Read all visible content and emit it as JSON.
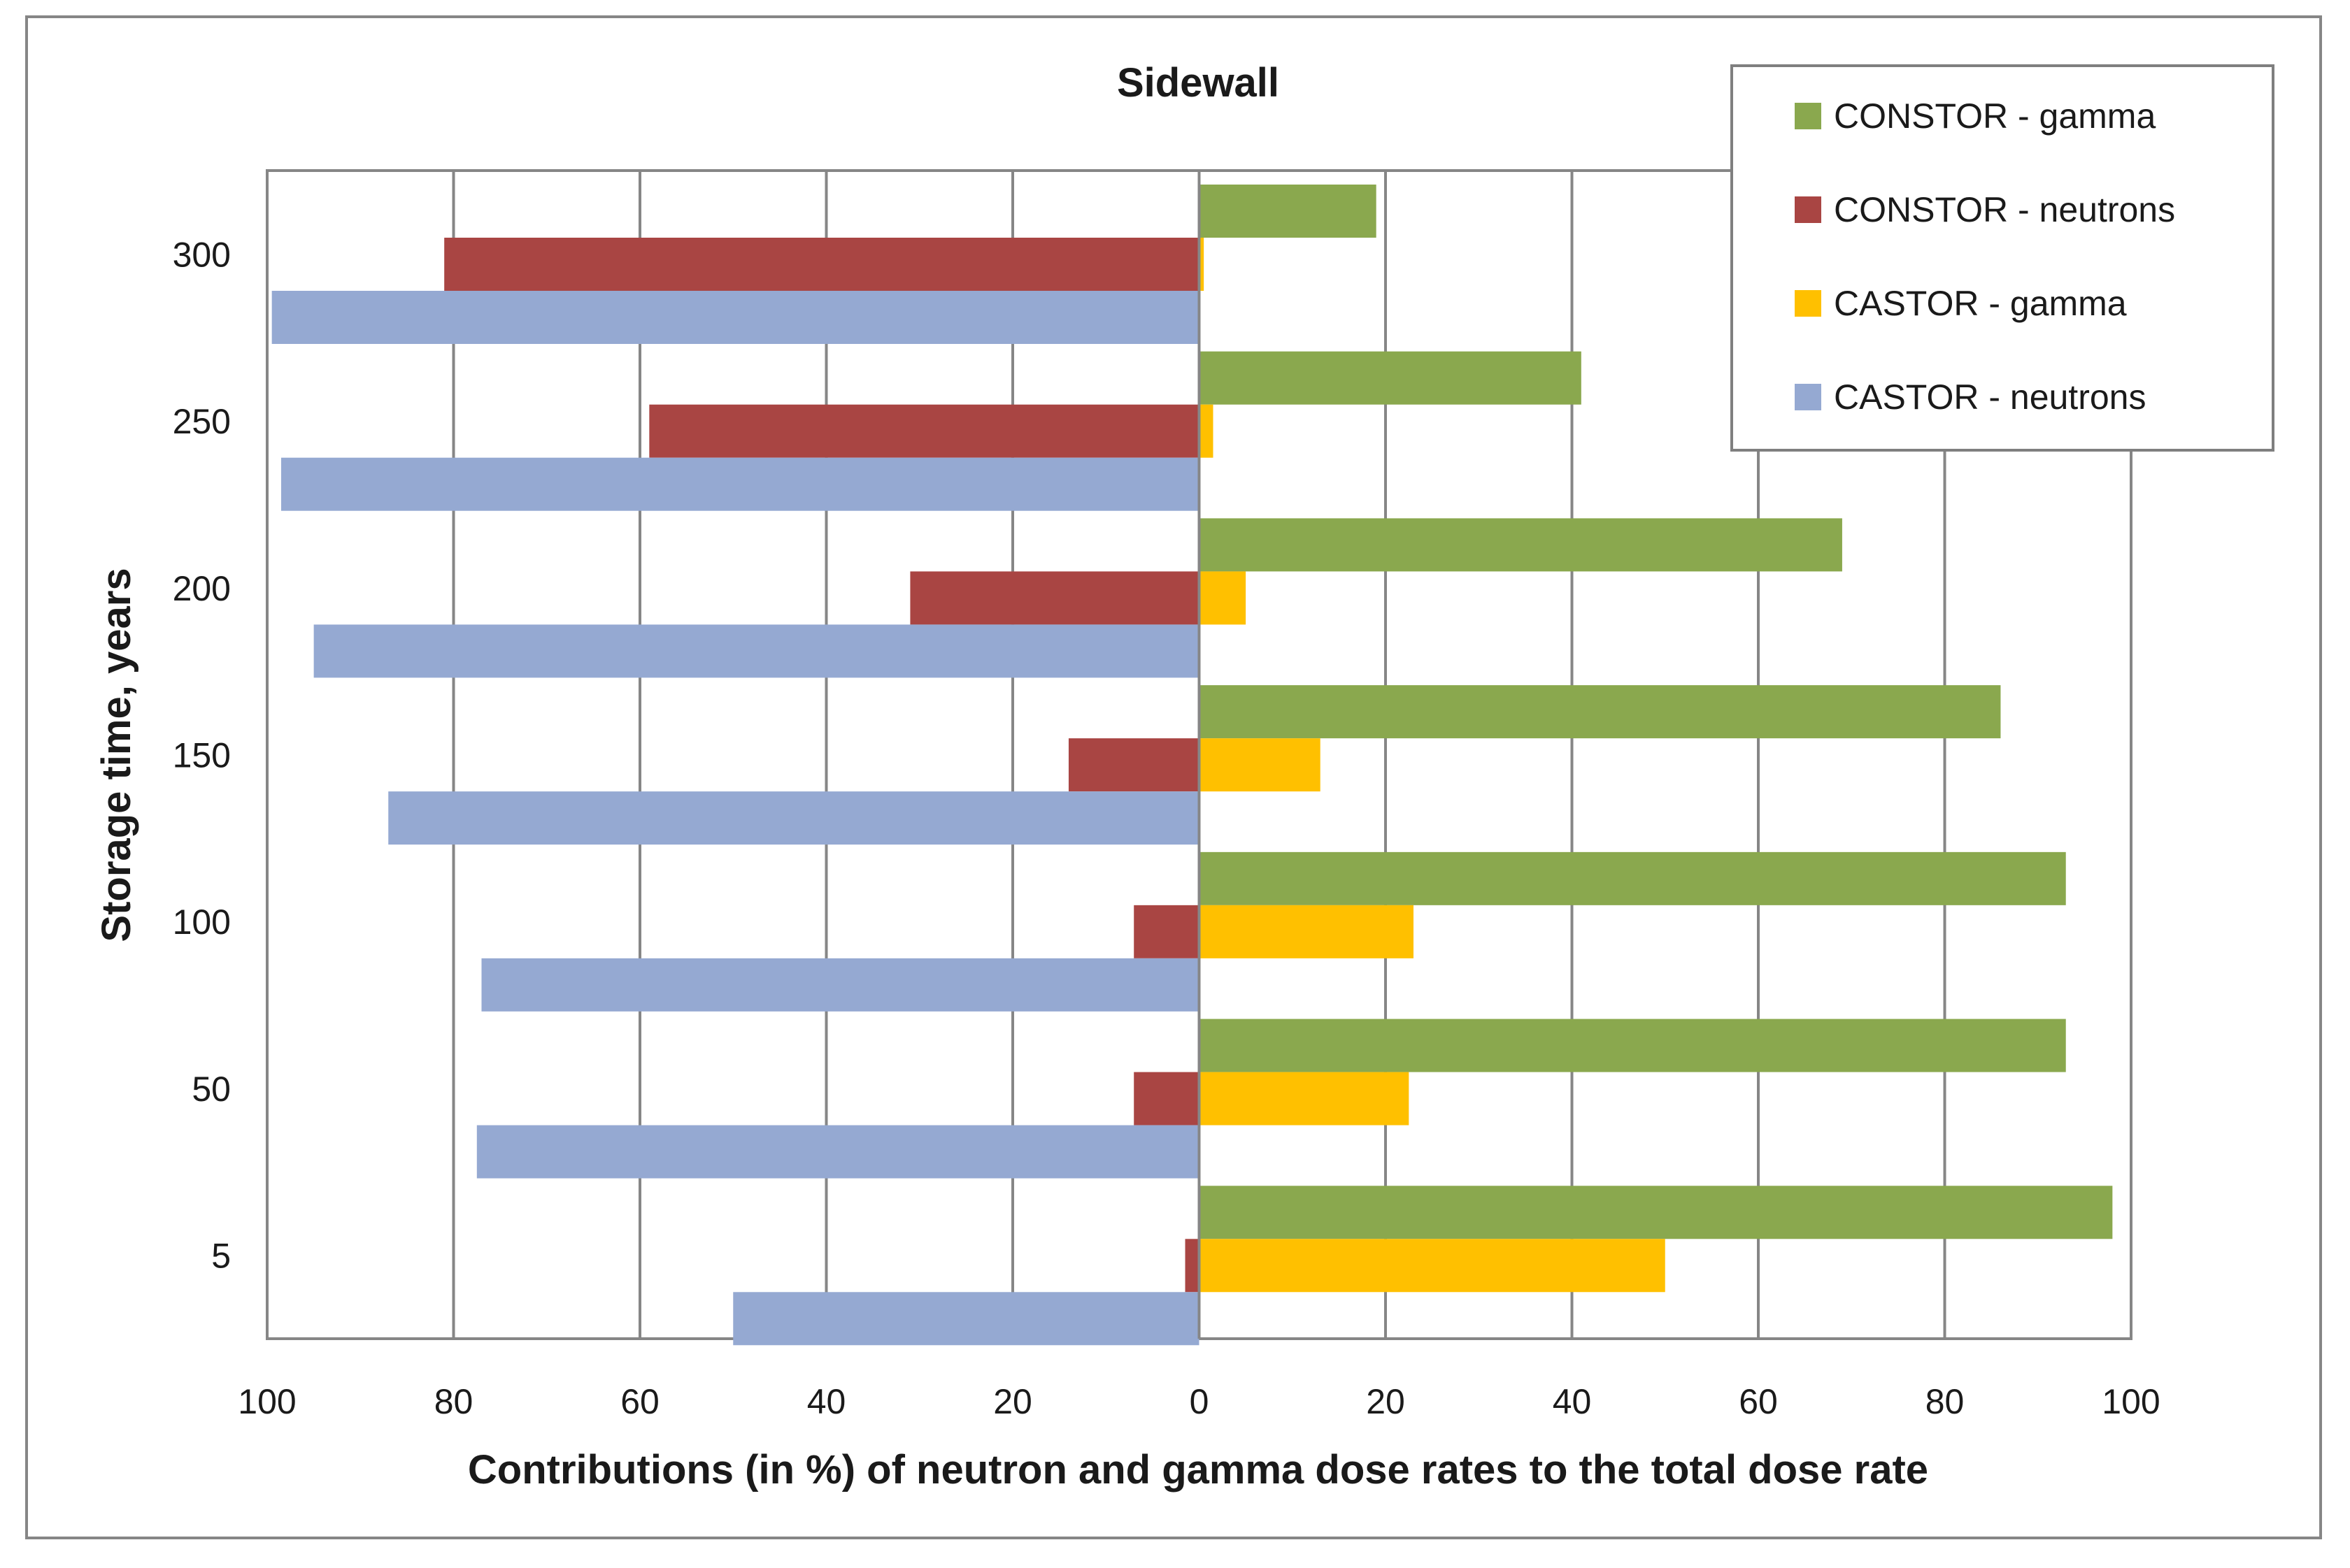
{
  "chart_data": {
    "type": "bar",
    "orientation": "horizontal",
    "title": "Sidewall",
    "xlabel": "Contributions (in %) of neutron and gamma dose rates to the total dose rate",
    "ylabel": "Storage time, years",
    "categories": [
      "300",
      "250",
      "200",
      "150",
      "100",
      "50",
      "5"
    ],
    "xlim": [
      -100,
      100
    ],
    "xticks": [
      -100,
      -80,
      -60,
      -40,
      -20,
      0,
      20,
      40,
      60,
      80,
      100
    ],
    "xtick_labels": [
      "100",
      "80",
      "60",
      "40",
      "20",
      "0",
      "20",
      "40",
      "60",
      "80",
      "100"
    ],
    "grid": true,
    "legend_position": "top-right",
    "series": [
      {
        "name": "CONSTOR - gamma",
        "color": "#8AA84E",
        "values": [
          19,
          41,
          69,
          86,
          93,
          93,
          98
        ]
      },
      {
        "name": "CONSTOR - neutrons",
        "color": "#A94543",
        "values": [
          81,
          59,
          31,
          14,
          7,
          7,
          1.5
        ]
      },
      {
        "name": "CASTOR - gamma",
        "color": "#FFC000",
        "values": [
          0.5,
          1.5,
          5,
          13,
          23,
          22.5,
          50
        ]
      },
      {
        "name": "CASTOR - neutrons",
        "color": "#95A9D2",
        "values": [
          99.5,
          98.5,
          95,
          87,
          77,
          77.5,
          50
        ]
      }
    ]
  }
}
